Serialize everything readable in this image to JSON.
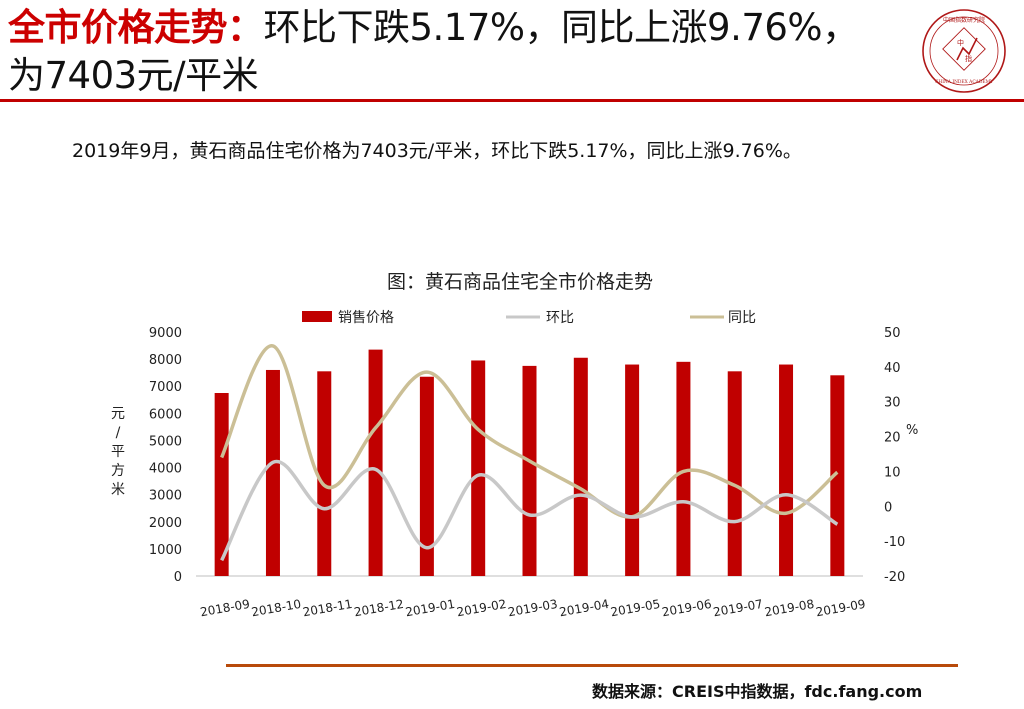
{
  "header": {
    "title_lead": "全市价格走势：",
    "title_rest": "环比下跌5.17%，同比上涨9.76%，为7403元/平米",
    "seal_text": "中国指数研究院 中指 CHINA INDEX ACADEMY"
  },
  "summary": "2019年9月，黄石商品住宅价格为7403元/平米，环比下跌5.17%，同比上涨9.76%。",
  "source": "数据来源：CREIS中指数据，fdc.fang.com",
  "colors": {
    "accent_red": "#c00000",
    "bar": "#c00000",
    "mom_line": "#c8c8c8",
    "yoy_line": "#cbbf96",
    "footer_rule": "#b84a0a"
  },
  "chart_data": {
    "type": "bar",
    "title": "图：黄石商品住宅全市价格走势",
    "categories": [
      "2018-09",
      "2018-10",
      "2018-11",
      "2018-12",
      "2019-01",
      "2019-02",
      "2019-03",
      "2019-04",
      "2019-05",
      "2019-06",
      "2019-07",
      "2019-08",
      "2019-09"
    ],
    "series": [
      {
        "name": "销售价格",
        "type": "bar",
        "axis": "left",
        "values": [
          6750,
          7600,
          7550,
          8350,
          7350,
          7950,
          7750,
          8050,
          7800,
          7900,
          7550,
          7800,
          7403
        ]
      },
      {
        "name": "环比",
        "type": "line",
        "axis": "right",
        "values": [
          -15.5,
          12.6,
          -0.7,
          10.6,
          -11.9,
          8.9,
          -2.5,
          3.2,
          -3.1,
          1.3,
          -4.4,
          3.3,
          -5.17
        ]
      },
      {
        "name": "同比",
        "type": "line",
        "axis": "right",
        "values": [
          14.0,
          46.0,
          6.0,
          22.5,
          38.5,
          22.0,
          13.0,
          5.0,
          -3.0,
          10.0,
          6.0,
          -2.0,
          9.76
        ]
      }
    ],
    "left_axis": {
      "label": "元/平方米",
      "ylim": [
        0,
        9000
      ],
      "ticks": [
        "0",
        "1000",
        "2000",
        "3000",
        "4000",
        "5000",
        "6000",
        "7000",
        "8000",
        "9000"
      ]
    },
    "right_axis": {
      "label": "%",
      "ylim": [
        -20,
        50
      ],
      "ticks": [
        "-20",
        "-10",
        "0",
        "10",
        "20",
        "30",
        "40",
        "50"
      ]
    },
    "legend_position": "top",
    "grid": false
  }
}
